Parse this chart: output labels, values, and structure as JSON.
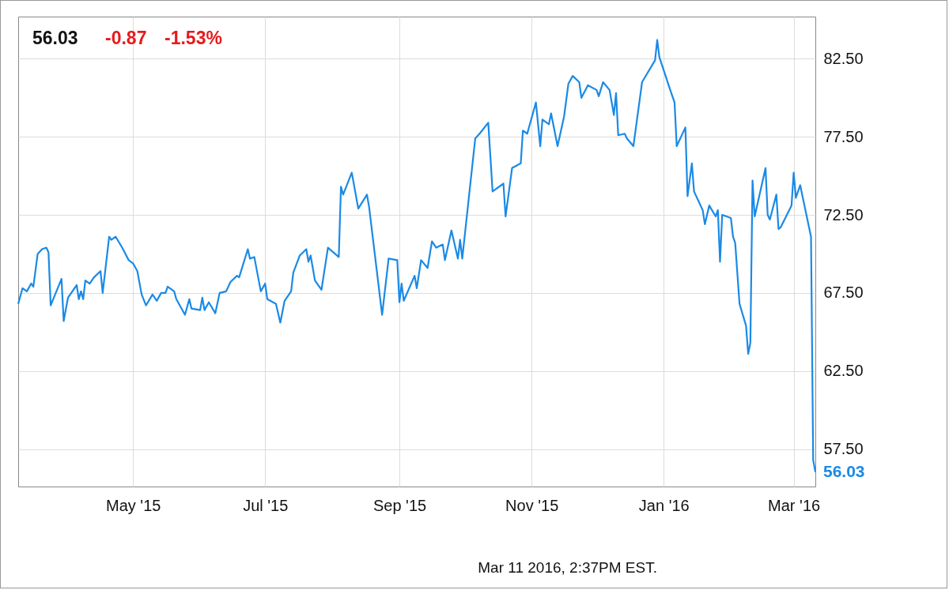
{
  "chart_data": {
    "type": "line",
    "annotations": [
      "56.03",
      "-0.87",
      "-1.53%",
      "Mar 11 2016, 2:37PM EST.",
      {
        "text": "56.03",
        "x": "2016-03-11",
        "y": 56.03
      }
    ],
    "x": [
      "2015-03-09",
      "2015-03-11",
      "2015-03-13",
      "2015-03-15",
      "2015-03-16",
      "2015-03-18",
      "2015-03-20",
      "2015-03-22",
      "2015-03-23",
      "2015-03-24",
      "2015-03-29",
      "2015-03-30",
      "2015-04-01",
      "2015-04-05",
      "2015-04-06",
      "2015-04-07",
      "2015-04-08",
      "2015-04-09",
      "2015-04-11",
      "2015-04-13",
      "2015-04-16",
      "2015-04-17",
      "2015-04-20",
      "2015-04-21",
      "2015-04-23",
      "2015-04-26",
      "2015-04-29",
      "2015-05-01",
      "2015-05-03",
      "2015-05-05",
      "2015-05-07",
      "2015-05-10",
      "2015-05-12",
      "2015-05-14",
      "2015-05-16",
      "2015-05-17",
      "2015-05-20",
      "2015-05-21",
      "2015-05-25",
      "2015-05-27",
      "2015-05-28",
      "2015-06-01",
      "2015-06-02",
      "2015-06-03",
      "2015-06-05",
      "2015-06-08",
      "2015-06-10",
      "2015-06-13",
      "2015-06-15",
      "2015-06-18",
      "2015-06-19",
      "2015-06-23",
      "2015-06-24",
      "2015-06-26",
      "2015-06-29",
      "2015-07-01",
      "2015-07-02",
      "2015-07-06",
      "2015-07-08",
      "2015-07-10",
      "2015-07-13",
      "2015-07-14",
      "2015-07-17",
      "2015-07-20",
      "2015-07-21",
      "2015-07-22",
      "2015-07-24",
      "2015-07-27",
      "2015-07-30",
      "2015-08-04",
      "2015-08-05",
      "2015-08-06",
      "2015-08-10",
      "2015-08-13",
      "2015-08-17",
      "2015-08-18",
      "2015-08-24",
      "2015-08-27",
      "2015-08-31",
      "2015-09-01",
      "2015-09-02",
      "2015-09-03",
      "2015-09-08",
      "2015-09-09",
      "2015-09-11",
      "2015-09-14",
      "2015-09-16",
      "2015-09-18",
      "2015-09-21",
      "2015-09-22",
      "2015-09-25",
      "2015-09-28",
      "2015-09-29",
      "2015-09-30",
      "2015-10-06",
      "2015-10-08",
      "2015-10-12",
      "2015-10-14",
      "2015-10-19",
      "2015-10-20",
      "2015-10-23",
      "2015-10-27",
      "2015-10-28",
      "2015-10-30",
      "2015-11-03",
      "2015-11-05",
      "2015-11-06",
      "2015-11-09",
      "2015-11-10",
      "2015-11-13",
      "2015-11-16",
      "2015-11-18",
      "2015-11-20",
      "2015-11-23",
      "2015-11-24",
      "2015-11-27",
      "2015-12-01",
      "2015-12-02",
      "2015-12-04",
      "2015-12-07",
      "2015-12-09",
      "2015-12-10",
      "2015-12-11",
      "2015-12-14",
      "2015-12-15",
      "2015-12-18",
      "2015-12-22",
      "2015-12-28",
      "2015-12-29",
      "2015-12-30",
      "2016-01-04",
      "2016-01-06",
      "2016-01-07",
      "2016-01-11",
      "2016-01-12",
      "2016-01-14",
      "2016-01-15",
      "2016-01-19",
      "2016-01-20",
      "2016-01-22",
      "2016-01-25",
      "2016-01-26",
      "2016-01-27",
      "2016-01-28",
      "2016-02-01",
      "2016-02-02",
      "2016-02-03",
      "2016-02-05",
      "2016-02-08",
      "2016-02-09",
      "2016-02-10",
      "2016-02-11",
      "2016-02-12",
      "2016-02-17",
      "2016-02-18",
      "2016-02-19",
      "2016-02-22",
      "2016-02-23",
      "2016-02-24",
      "2016-02-29",
      "2016-03-01",
      "2016-03-02",
      "2016-03-04",
      "2016-03-09",
      "2016-03-10",
      "2016-03-11"
    ],
    "series": [
      {
        "color": "#1a8ae6",
        "values": [
          66.8,
          67.8,
          67.6,
          68.1,
          67.9,
          70.0,
          70.3,
          70.4,
          70.1,
          66.7,
          68.4,
          65.7,
          67.2,
          68.0,
          67.1,
          67.6,
          67.1,
          68.3,
          68.1,
          68.5,
          68.9,
          67.5,
          71.1,
          70.9,
          71.1,
          70.4,
          69.6,
          69.4,
          68.9,
          67.4,
          66.7,
          67.4,
          67.0,
          67.5,
          67.5,
          67.9,
          67.6,
          67.1,
          66.1,
          67.1,
          66.5,
          66.4,
          67.2,
          66.4,
          66.9,
          66.2,
          67.5,
          67.6,
          68.2,
          68.6,
          68.5,
          70.3,
          69.7,
          69.8,
          67.6,
          68.1,
          67.1,
          66.8,
          65.6,
          67.0,
          67.6,
          68.8,
          69.9,
          70.3,
          69.5,
          69.9,
          68.3,
          67.7,
          70.4,
          69.8,
          74.3,
          73.8,
          75.2,
          72.9,
          73.8,
          73.0,
          66.1,
          69.7,
          69.6,
          66.9,
          68.1,
          67.0,
          68.6,
          67.8,
          69.6,
          69.1,
          70.8,
          70.4,
          70.6,
          69.6,
          71.5,
          69.7,
          70.9,
          69.7,
          77.4,
          77.7,
          78.4,
          74.0,
          74.5,
          72.4,
          75.5,
          75.8,
          77.9,
          77.7,
          79.7,
          76.9,
          78.6,
          78.3,
          79.0,
          76.9,
          78.8,
          80.9,
          81.4,
          81.0,
          80.0,
          80.8,
          80.5,
          80.1,
          81.0,
          80.5,
          78.9,
          80.3,
          77.6,
          77.7,
          77.4,
          76.9,
          81.0,
          82.4,
          83.7,
          82.6,
          80.5,
          79.7,
          76.9,
          78.1,
          73.7,
          75.8,
          74.0,
          72.8,
          71.9,
          73.1,
          72.4,
          72.8,
          69.5,
          72.5,
          72.3,
          71.1,
          70.7,
          66.8,
          65.4,
          63.6,
          64.3,
          74.7,
          72.4,
          75.5,
          72.5,
          72.2,
          73.8,
          71.6,
          71.7,
          73.1,
          75.2,
          73.6,
          74.4,
          71.1,
          56.8,
          56.03
        ]
      }
    ],
    "xlim": [
      "2015-03-09",
      "2016-03-11"
    ],
    "xticks": [
      {
        "value": "2015-05-01",
        "label": "May '15"
      },
      {
        "value": "2015-07-01",
        "label": "Jul '15"
      },
      {
        "value": "2015-09-01",
        "label": "Sep '15"
      },
      {
        "value": "2015-11-01",
        "label": "Nov '15"
      },
      {
        "value": "2016-01-01",
        "label": "Jan '16"
      },
      {
        "value": "2016-03-01",
        "label": "Mar '16"
      }
    ],
    "ylim": [
      55.1,
      85.2
    ],
    "yticks": [
      {
        "value": 57.5,
        "label": "57.50"
      },
      {
        "value": 62.5,
        "label": "62.50"
      },
      {
        "value": 67.5,
        "label": "67.50"
      },
      {
        "value": 72.5,
        "label": "72.50"
      },
      {
        "value": 77.5,
        "label": "77.50"
      },
      {
        "value": 82.5,
        "label": "82.50"
      }
    ],
    "grid": true
  }
}
